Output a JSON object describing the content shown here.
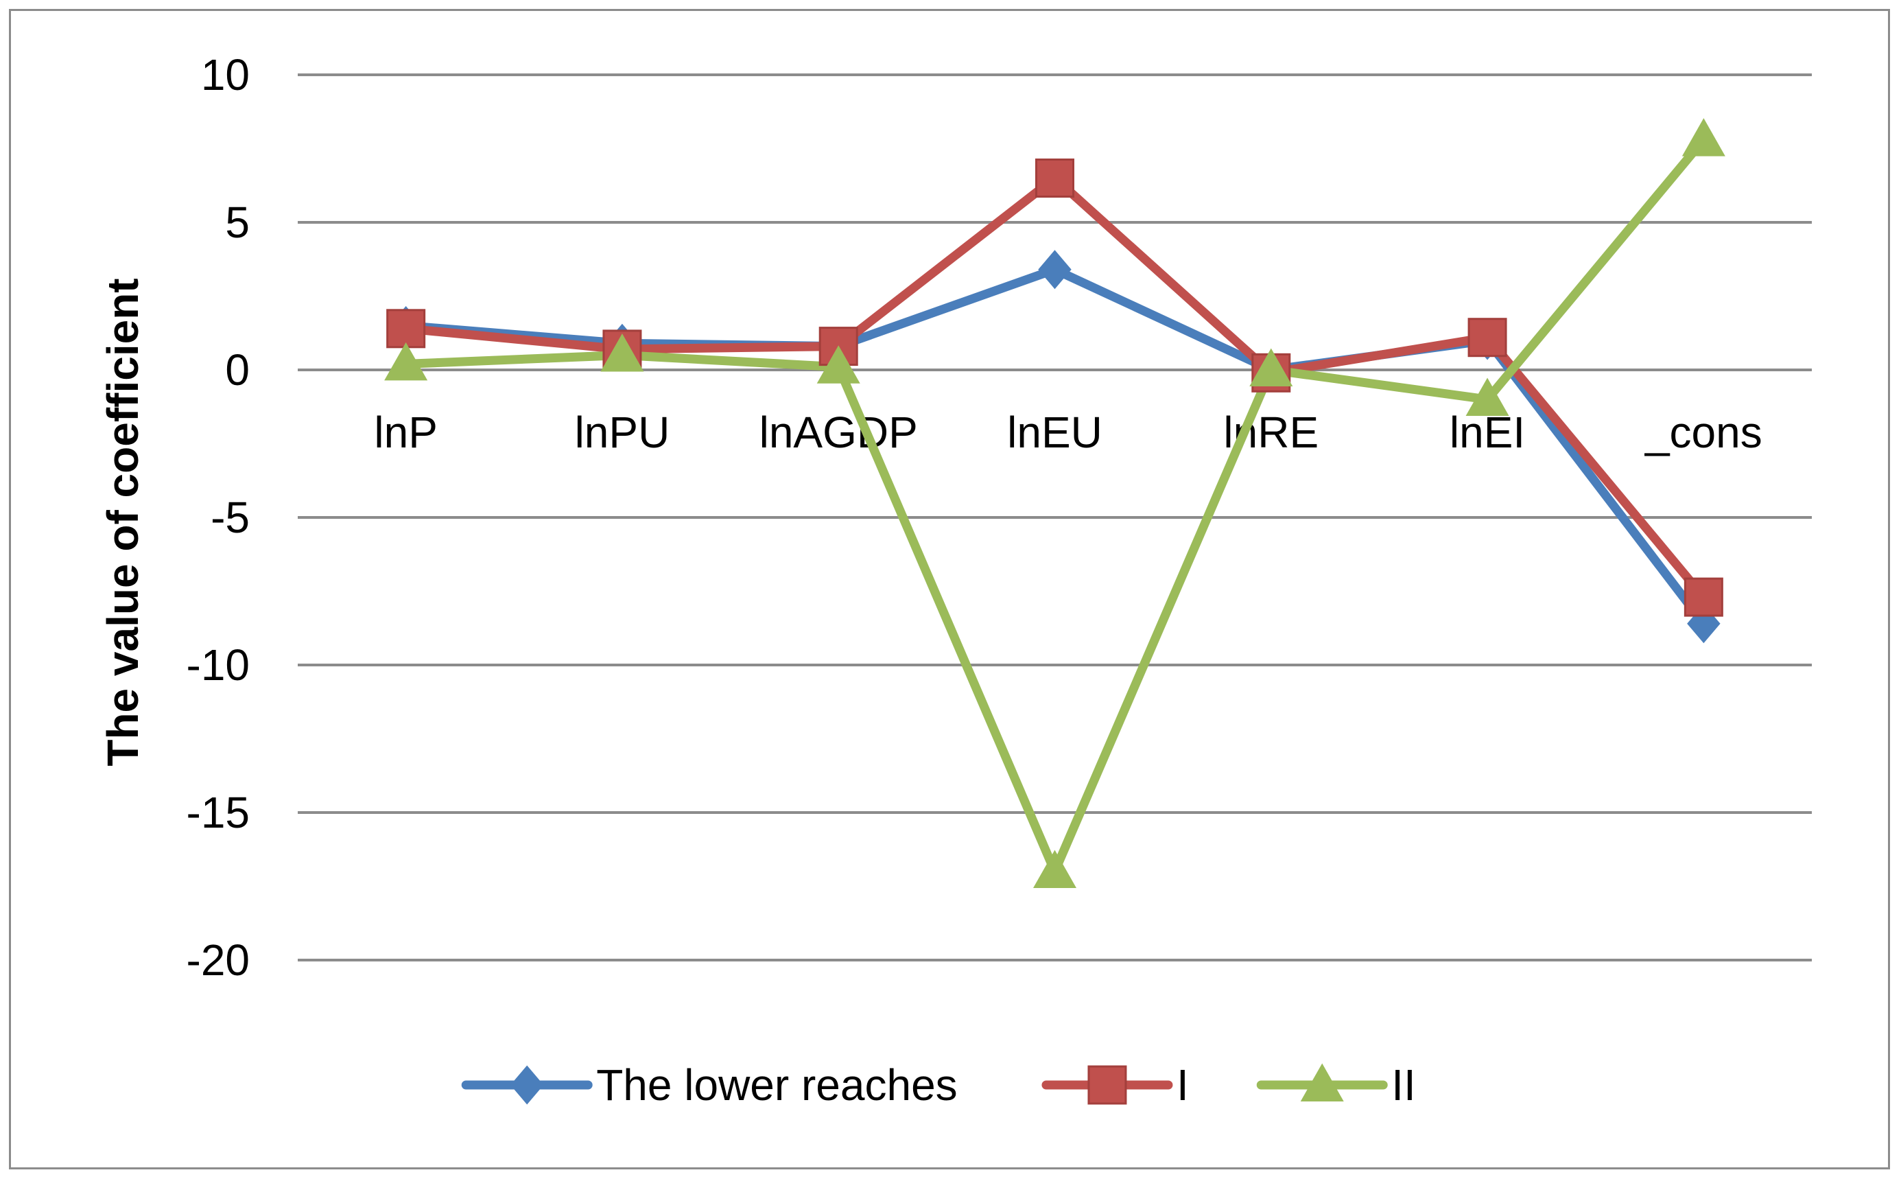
{
  "chart_data": {
    "type": "line",
    "title": "",
    "xlabel": "",
    "ylabel": "The value of coefficient",
    "ylim": [
      -20,
      10
    ],
    "yticks": [
      10,
      5,
      0,
      -5,
      -10,
      -15,
      -20
    ],
    "grid": true,
    "legend_position": "bottom",
    "categories": [
      "lnP",
      "lnPU",
      "lnAGDP",
      "lnEU",
      "lnRE",
      "lnEI",
      "_cons"
    ],
    "series": [
      {
        "name": "The lower reaches",
        "color": "#4a7ebb",
        "marker": "diamond",
        "values": [
          1.5,
          0.9,
          0.8,
          3.4,
          0.0,
          1.0,
          -8.6
        ]
      },
      {
        "name": "I",
        "color": "#c0504d",
        "marker": "square",
        "values": [
          1.4,
          0.7,
          0.8,
          6.5,
          -0.1,
          1.1,
          -7.7
        ]
      },
      {
        "name": "II",
        "color": "#9bbb59",
        "marker": "triangle",
        "values": [
          0.2,
          0.5,
          0.1,
          -17.0,
          0.0,
          -1.0,
          7.8
        ]
      }
    ]
  }
}
